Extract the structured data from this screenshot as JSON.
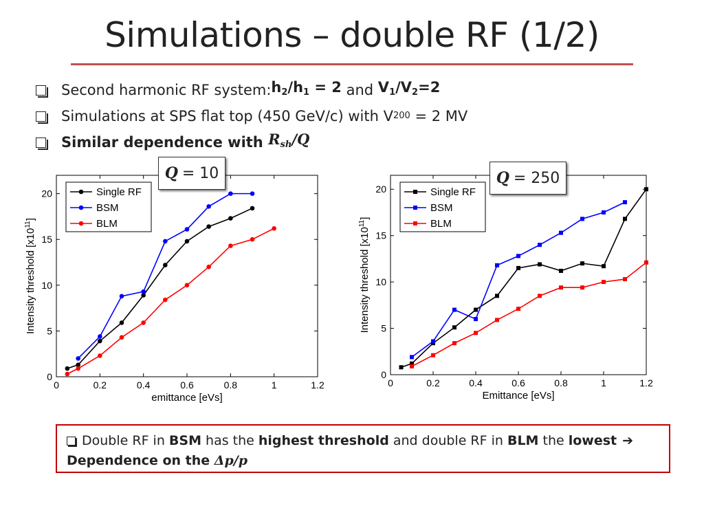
{
  "title": "Simulations – double RF (1/2)",
  "bullets": {
    "b1_text": "Second harmonic RF system: ",
    "b1_h2": "h",
    "b1_h2_sub": "2",
    "b1_slash": "/h",
    "b1_h1_sub": "1",
    "b1_eq": " = 2",
    "b1_and": " and ",
    "b1_v": "V",
    "b1_v1_sub": "1",
    "b1_vslash": "/V",
    "b1_v2_sub": "2",
    "b1_veq": "=2",
    "b2_text": "Simulations at SPS flat top (450 GeV/c) with V",
    "b2_sub": "200",
    "b2_tail": " = 2 MV",
    "b3_text": "Similar dependence with ",
    "b3_math": "Rsh/Q"
  },
  "qbox_left": {
    "label": "Q",
    "value": "= 10"
  },
  "qbox_right": {
    "label": "Q",
    "value": "= 250"
  },
  "conclusion": {
    "p1": "Double RF in ",
    "p2": "BSM",
    "p3": " has the ",
    "p4": "highest threshold",
    "p5": " and double RF in ",
    "p6": "BLM",
    "p7": " the ",
    "p8": "lowest",
    "arrow": "➔",
    "p9": "Dependence on the ",
    "p10": "Δp/p"
  },
  "colors": {
    "single": "#000000",
    "bsm": "#0000ff",
    "blm": "#ff0000",
    "rule": "#c0504d",
    "box": "#c00000"
  },
  "chart_data": [
    {
      "type": "line",
      "xlabel": "emittance [eVs]",
      "ylabel": "Intensity threshold [x10",
      "ylabel_sup": "11",
      "ylabel_close": "]",
      "xlim": [
        0,
        1.2
      ],
      "ylim": [
        0,
        22
      ],
      "xticks": [
        "0",
        "0.2",
        "0.4",
        "0.6",
        "0.8",
        "1",
        "1.2"
      ],
      "yticks": [
        "0",
        "5",
        "10",
        "15",
        "20"
      ],
      "legend_position": "top-left",
      "marker": "circle",
      "series": [
        {
          "name": "Single RF",
          "x": [
            0.05,
            0.1,
            0.2,
            0.3,
            0.4,
            0.5,
            0.6,
            0.7,
            0.8,
            0.9
          ],
          "y": [
            0.9,
            1.3,
            3.9,
            5.9,
            8.9,
            12.2,
            14.8,
            16.4,
            17.3,
            18.4
          ]
        },
        {
          "name": "BSM",
          "x": [
            0.1,
            0.2,
            0.3,
            0.4,
            0.5,
            0.6,
            0.7,
            0.8,
            0.9
          ],
          "y": [
            2.0,
            4.4,
            8.8,
            9.3,
            14.8,
            16.1,
            18.6,
            20.0,
            20.0
          ]
        },
        {
          "name": "BLM",
          "x": [
            0.05,
            0.1,
            0.2,
            0.3,
            0.4,
            0.5,
            0.6,
            0.7,
            0.8,
            0.9,
            1.0
          ],
          "y": [
            0.3,
            0.9,
            2.3,
            4.3,
            5.9,
            8.4,
            10.0,
            12.0,
            14.3,
            15.0,
            16.2
          ]
        }
      ]
    },
    {
      "type": "line",
      "xlabel": "Emittance [eVs]",
      "ylabel": "Intensity threshold [x10",
      "ylabel_sup": "11",
      "ylabel_close": "]",
      "xlim": [
        0,
        1.2
      ],
      "ylim": [
        0,
        21.5
      ],
      "xticks": [
        "0",
        "0.2",
        "0.4",
        "0.6",
        "0.8",
        "1",
        "1.2"
      ],
      "yticks": [
        "0",
        "5",
        "10",
        "15",
        "20"
      ],
      "legend_position": "top-left",
      "marker": "square",
      "series": [
        {
          "name": "Single RF",
          "x": [
            0.05,
            0.1,
            0.2,
            0.3,
            0.4,
            0.5,
            0.6,
            0.7,
            0.8,
            0.9,
            1.0,
            1.1,
            1.2
          ],
          "y": [
            0.8,
            1.2,
            3.4,
            5.1,
            7.0,
            8.5,
            11.5,
            11.9,
            11.2,
            12.0,
            11.7,
            16.8,
            20.0
          ]
        },
        {
          "name": "BSM",
          "x": [
            0.1,
            0.2,
            0.3,
            0.4,
            0.5,
            0.6,
            0.7,
            0.8,
            0.9,
            1.0,
            1.1
          ],
          "y": [
            1.9,
            3.6,
            7.0,
            6.0,
            11.8,
            12.8,
            14.0,
            15.3,
            16.8,
            17.5,
            18.6
          ]
        },
        {
          "name": "BLM",
          "x": [
            0.1,
            0.2,
            0.3,
            0.4,
            0.5,
            0.6,
            0.7,
            0.8,
            0.9,
            1.0,
            1.1,
            1.2
          ],
          "y": [
            0.9,
            2.1,
            3.4,
            4.5,
            5.9,
            7.1,
            8.5,
            9.4,
            9.4,
            10.0,
            10.3,
            12.1
          ]
        }
      ]
    }
  ]
}
